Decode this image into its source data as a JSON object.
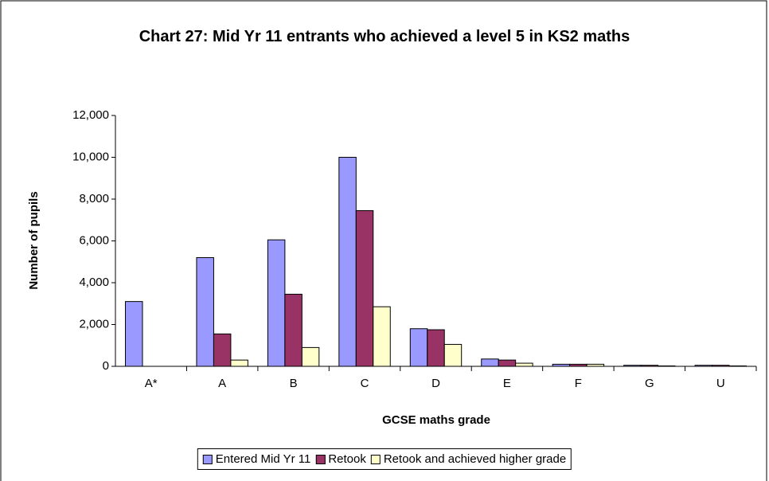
{
  "chart_data": {
    "type": "bar",
    "title": "Chart 27: Mid Yr 11 entrants who achieved a level 5 in KS2 maths",
    "x_label": "GCSE maths grade",
    "y_label": "Number of pupils",
    "categories": [
      "A*",
      "A",
      "B",
      "C",
      "D",
      "E",
      "F",
      "G",
      "U"
    ],
    "series": [
      {
        "name": "Entered Mid Yr 11",
        "color": "#9999ff",
        "values": [
          3100,
          5200,
          6050,
          10000,
          1800,
          350,
          100,
          50,
          50
        ]
      },
      {
        "name": "Retook",
        "color": "#993366",
        "values": [
          0,
          1550,
          3450,
          7450,
          1750,
          300,
          100,
          50,
          50
        ]
      },
      {
        "name": "Retook and achieved higher grade",
        "color": "#ffffcc",
        "values": [
          0,
          300,
          900,
          2850,
          1050,
          150,
          100,
          20,
          20
        ]
      }
    ],
    "ylim": [
      0,
      12000
    ],
    "yticks": [
      0,
      {
        "value": 2000,
        "label": "2,000"
      },
      {
        "value": 4000,
        "label": "4,000"
      },
      {
        "value": 6000,
        "label": "6,000"
      },
      {
        "value": 8000,
        "label": "8,000"
      },
      {
        "value": 10000,
        "label": "10,000"
      },
      {
        "value": 12000,
        "label": "12,000"
      }
    ],
    "grid": false,
    "legend": "bottom"
  }
}
